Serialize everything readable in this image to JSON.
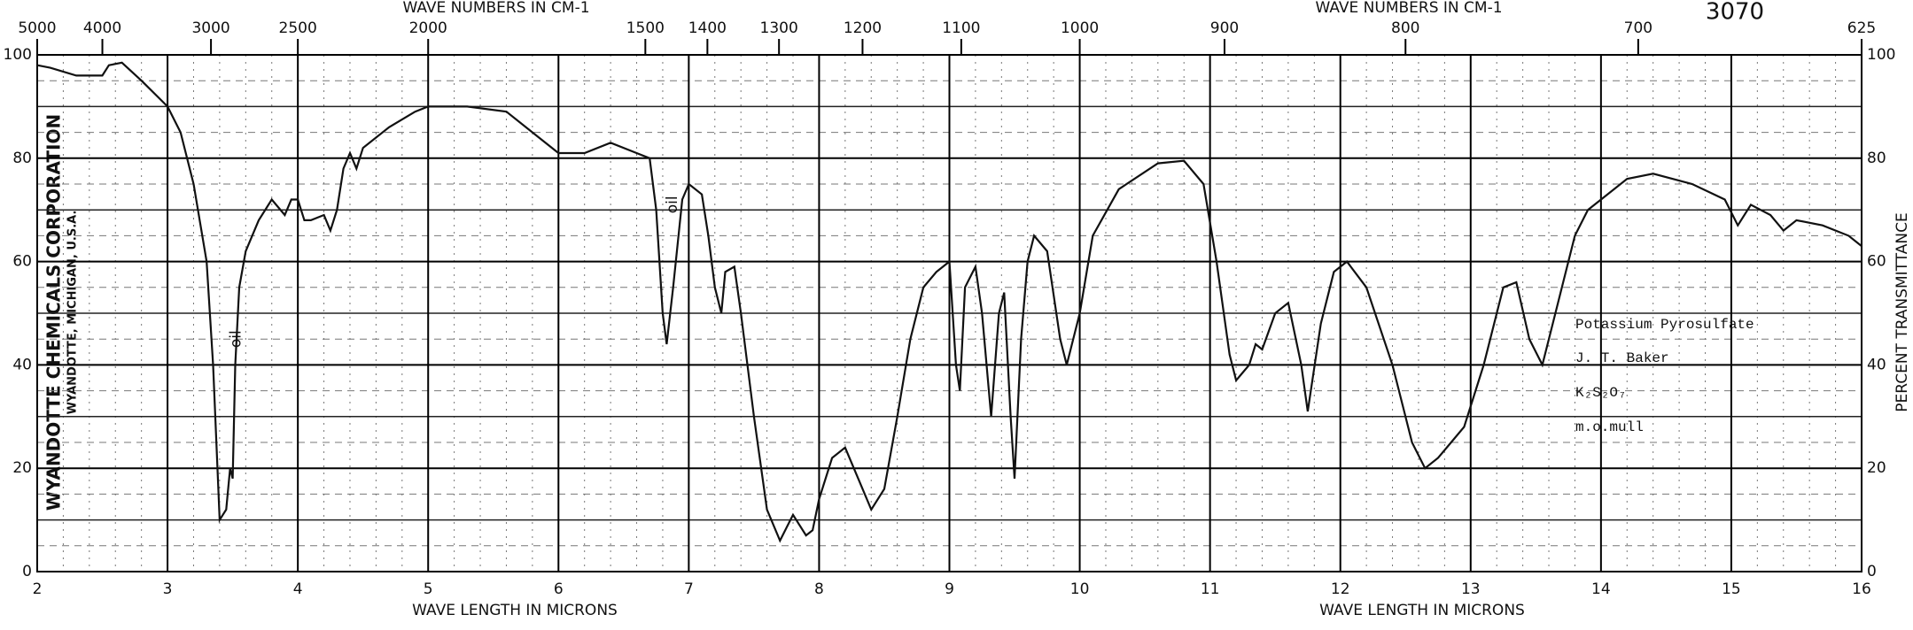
{
  "chart_data": {
    "type": "line",
    "code": "3070",
    "company": "WYANDOTTE CHEMICALS CORPORATION",
    "company_address": "WYANDOTTE, MICHIGAN, U.S.A.",
    "xlabel": "WAVE LENGTH IN MICRONS",
    "ylabel": "PERCENT TRANSMITTANCE",
    "top_axis": {
      "label": "WAVE NUMBERS IN CM-1",
      "ticks": [
        5000,
        4000,
        3000,
        2500,
        2000,
        1500,
        1400,
        1300,
        1200,
        1100,
        1000,
        900,
        800,
        700,
        625
      ]
    },
    "xlim": [
      2,
      16
    ],
    "xticks": [
      2,
      3,
      4,
      5,
      6,
      7,
      8,
      9,
      10,
      11,
      12,
      13,
      14,
      15,
      16
    ],
    "ylim": [
      0,
      100
    ],
    "yticks": [
      0,
      20,
      40,
      60,
      80,
      100
    ],
    "grid": true,
    "annotations": [
      "oil",
      "oil"
    ],
    "sample_info": [
      "Potassium Pyrosulfate",
      "J. T. Baker",
      "K₂S₂O₇",
      "m.o.mull"
    ],
    "series": [
      {
        "color": "#111111",
        "x": [
          2.0,
          2.1,
          2.3,
          2.5,
          2.55,
          2.65,
          2.8,
          3.0,
          3.1,
          3.2,
          3.3,
          3.35,
          3.4,
          3.45,
          3.48,
          3.5,
          3.52,
          3.55,
          3.6,
          3.7,
          3.8,
          3.9,
          3.95,
          4.0,
          4.05,
          4.1,
          4.2,
          4.25,
          4.3,
          4.35,
          4.4,
          4.45,
          4.5,
          4.7,
          4.9,
          5.0,
          5.3,
          5.6,
          5.8,
          6.0,
          6.2,
          6.4,
          6.6,
          6.7,
          6.75,
          6.8,
          6.83,
          6.88,
          6.95,
          7.0,
          7.1,
          7.15,
          7.2,
          7.25,
          7.28,
          7.35,
          7.4,
          7.5,
          7.6,
          7.7,
          7.8,
          7.9,
          7.95,
          8.0,
          8.1,
          8.2,
          8.3,
          8.4,
          8.5,
          8.6,
          8.7,
          8.8,
          8.9,
          9.0,
          9.05,
          9.08,
          9.12,
          9.2,
          9.25,
          9.32,
          9.38,
          9.42,
          9.47,
          9.5,
          9.55,
          9.6,
          9.65,
          9.75,
          9.85,
          9.9,
          10.0,
          10.1,
          10.3,
          10.6,
          10.8,
          10.95,
          11.05,
          11.15,
          11.2,
          11.3,
          11.35,
          11.4,
          11.5,
          11.6,
          11.7,
          11.75,
          11.85,
          11.95,
          12.05,
          12.2,
          12.4,
          12.55,
          12.65,
          12.75,
          12.85,
          12.95,
          13.1,
          13.25,
          13.35,
          13.45,
          13.55,
          13.65,
          13.8,
          13.9,
          14.0,
          14.2,
          14.4,
          14.7,
          14.95,
          15.05,
          15.15,
          15.3,
          15.4,
          15.5,
          15.7,
          15.9,
          16.0
        ],
        "values": [
          98,
          97.5,
          96,
          96,
          98,
          98.5,
          95,
          90,
          85,
          75,
          60,
          40,
          10,
          12,
          20,
          18,
          40,
          55,
          62,
          68,
          72,
          69,
          72,
          72,
          68,
          68,
          69,
          66,
          70,
          78,
          81,
          78,
          82,
          86,
          89,
          90,
          90,
          89,
          85,
          81,
          81,
          83,
          81,
          80,
          70,
          50,
          44,
          55,
          72,
          75,
          73,
          65,
          55,
          50,
          58,
          59,
          50,
          30,
          12,
          6,
          11,
          7,
          8,
          14,
          22,
          24,
          18,
          12,
          16,
          30,
          45,
          55,
          58,
          60,
          40,
          35,
          55,
          59,
          50,
          30,
          50,
          54,
          30,
          18,
          45,
          60,
          65,
          62,
          45,
          40,
          50,
          65,
          74,
          79,
          79.5,
          75,
          60,
          42,
          37,
          40,
          44,
          43,
          50,
          52,
          40,
          31,
          48,
          58,
          60,
          55,
          40,
          25,
          20,
          22,
          25,
          28,
          40,
          55,
          56,
          45,
          40,
          50,
          65,
          70,
          72,
          76,
          77,
          75,
          72,
          67,
          71,
          69,
          66,
          68,
          67,
          65,
          63
        ]
      }
    ]
  }
}
